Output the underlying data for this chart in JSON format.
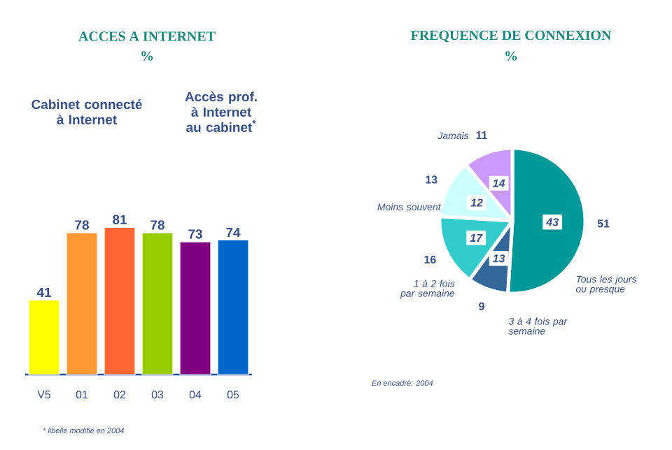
{
  "chart_data": [
    {
      "type": "bar",
      "title": "ACCES A INTERNET",
      "subtitle": "%",
      "categories": [
        "V5",
        "01",
        "02",
        "03",
        "04",
        "05"
      ],
      "values": [
        41,
        78,
        81,
        78,
        73,
        74
      ],
      "colors": [
        "#ffff00",
        "#ff9933",
        "#ff6633",
        "#99cc00",
        "#800080",
        "#0066cc"
      ],
      "data_labels": true,
      "tick_labels": "x",
      "annotations": [
        "Cabinet connecté à Internet",
        "Accès prof. à Internet au cabinet$^{*}$",
        "* libellé modifié en 2004"
      ]
    },
    {
      "type": "pie",
      "title": "FREQUENCE DE CONNEXION",
      "subtitle": "%",
      "categories": [
        "Tous les jours ou presque",
        "3 à 4 fois par semaine",
        "1 à 2 fois par semaine",
        "Moins souvent",
        "Jamais"
      ],
      "values": [
        51,
        9,
        16,
        13,
        11
      ],
      "colors": [
        "#009999",
        "#336699",
        "#33cccc",
        "#ccffff",
        "#cc99ff"
      ],
      "data_labels": true,
      "annotations": [
        "43",
        "13",
        "17",
        "12",
        "14",
        "En encadré: 2004"
      ]
    }
  ]
}
